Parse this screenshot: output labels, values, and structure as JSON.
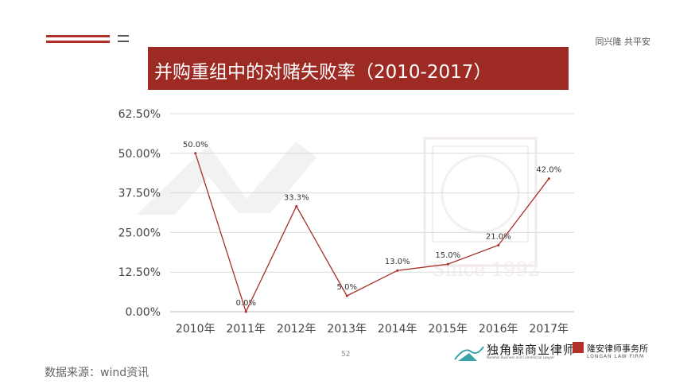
{
  "header": {
    "slogan": "同兴隆 共平安"
  },
  "title": "并购重组中的对赌失败率（2010-2017）",
  "colors": {
    "accent": "#9e2a24",
    "line": "#a6302a"
  },
  "chart_data": {
    "type": "line",
    "title": "并购重组中的对赌失败率（2010-2017）",
    "categories": [
      "2010年",
      "2011年",
      "2012年",
      "2013年",
      "2014年",
      "2015年",
      "2016年",
      "2017年"
    ],
    "series": [
      {
        "values": [
          50.0,
          0.0,
          33.3,
          5.0,
          13.0,
          15.0,
          21.0,
          42.0
        ],
        "data_labels": [
          "50.0%",
          "0.0%",
          "33.3%",
          "5.0%",
          "13.0%",
          "15.0%",
          "21.0%",
          "42.0%"
        ]
      }
    ],
    "y_ticks": [
      0,
      12.5,
      25,
      37.5,
      50,
      62.5
    ],
    "y_tick_labels": [
      "0.00%",
      "12.50%",
      "25.00%",
      "37.50%",
      "50.00%",
      "62.50%"
    ],
    "ylim": [
      0,
      62.5
    ],
    "grid": true,
    "legend": "none"
  },
  "watermark": {
    "text": "Since 1992"
  },
  "footer": {
    "page_number": "52",
    "source": "数据来源：wind资讯",
    "logo1_name": "独角鲸商业律师",
    "logo1_sub": "Narwhal Business and Commercial Lawyer",
    "logo2_name": "隆安律师事务所",
    "logo2_sub": "LONGAN LAW FIRM"
  }
}
